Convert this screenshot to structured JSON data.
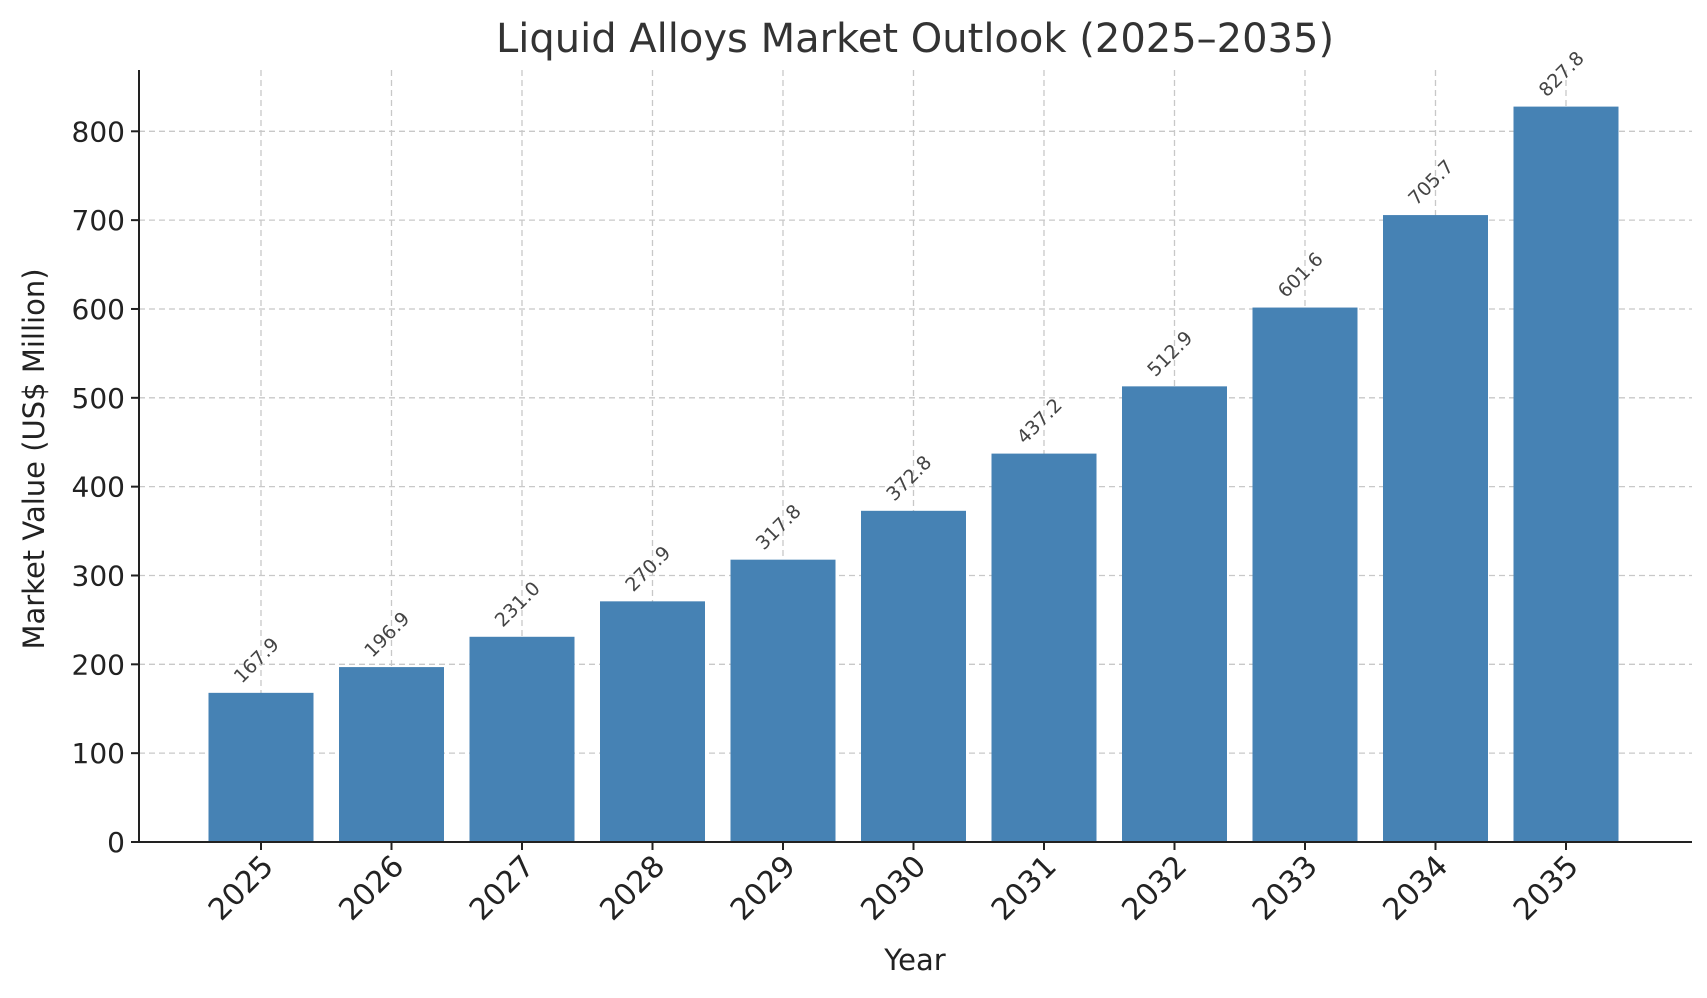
{
  "chart_data": {
    "type": "bar",
    "title": "Liquid Alloys Market Outlook (2025–2035)",
    "xlabel": "Year",
    "ylabel": "Market Value (US$ Million)",
    "categories": [
      "2025",
      "2026",
      "2027",
      "2028",
      "2029",
      "2030",
      "2031",
      "2032",
      "2033",
      "2034",
      "2035"
    ],
    "values": [
      167.9,
      196.9,
      231.0,
      270.9,
      317.8,
      372.8,
      437.2,
      512.9,
      601.6,
      705.7,
      827.8
    ],
    "data_labels": [
      "167.9",
      "196.9",
      "231.0",
      "270.9",
      "317.8",
      "372.8",
      "437.2",
      "512.9",
      "601.6",
      "705.7",
      "827.8"
    ],
    "yticks": [
      0,
      100,
      200,
      300,
      400,
      500,
      600,
      700,
      800
    ],
    "ylim": [
      0,
      869
    ],
    "grid": true,
    "bar_color": "#4682b4"
  }
}
